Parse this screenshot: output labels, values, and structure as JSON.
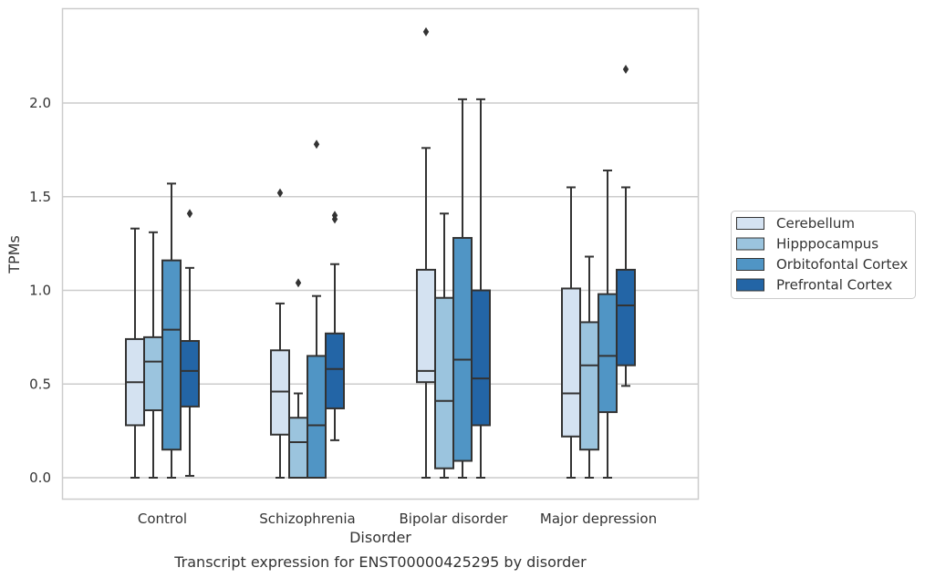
{
  "caption": "Transcript expression for ENST00000425295 by disorder",
  "chart_data": {
    "type": "boxplot",
    "title": "",
    "xlabel": "Disorder",
    "ylabel": "TPMs",
    "ylim": [
      -0.11,
      2.5
    ],
    "yticks": [
      "0.0",
      "0.5",
      "1.0",
      "1.5",
      "2.0"
    ],
    "grid": "horizontal",
    "legend_position": "right",
    "categories": [
      "Control",
      "Schizophrenia",
      "Bipolar disorder",
      "Major depression"
    ],
    "series": [
      {
        "name": "Cerebellum",
        "color": "#d4e2f1",
        "boxes": [
          {
            "whisker_low": 0.0,
            "q1": 0.28,
            "median": 0.51,
            "q3": 0.74,
            "whisker_high": 1.33,
            "outliers": []
          },
          {
            "whisker_low": 0.0,
            "q1": 0.23,
            "median": 0.46,
            "q3": 0.68,
            "whisker_high": 0.93,
            "outliers": [
              1.52
            ]
          },
          {
            "whisker_low": 0.0,
            "q1": 0.51,
            "median": 0.57,
            "q3": 1.11,
            "whisker_high": 1.76,
            "outliers": [
              2.38
            ]
          },
          {
            "whisker_low": 0.0,
            "q1": 0.22,
            "median": 0.45,
            "q3": 1.01,
            "whisker_high": 1.55,
            "outliers": []
          }
        ]
      },
      {
        "name": "Hipppocampus",
        "color": "#9bc4de",
        "boxes": [
          {
            "whisker_low": 0.0,
            "q1": 0.36,
            "median": 0.62,
            "q3": 0.75,
            "whisker_high": 1.31,
            "outliers": []
          },
          {
            "whisker_low": 0.0,
            "q1": 0.0,
            "median": 0.19,
            "q3": 0.32,
            "whisker_high": 0.45,
            "outliers": [
              1.04
            ]
          },
          {
            "whisker_low": 0.0,
            "q1": 0.05,
            "median": 0.41,
            "q3": 0.96,
            "whisker_high": 1.41,
            "outliers": []
          },
          {
            "whisker_low": 0.0,
            "q1": 0.15,
            "median": 0.6,
            "q3": 0.83,
            "whisker_high": 1.18,
            "outliers": []
          }
        ]
      },
      {
        "name": "Orbitofontal Cortex",
        "color": "#5095c5",
        "boxes": [
          {
            "whisker_low": 0.0,
            "q1": 0.15,
            "median": 0.79,
            "q3": 1.16,
            "whisker_high": 1.57,
            "outliers": []
          },
          {
            "whisker_low": 0.0,
            "q1": 0.0,
            "median": 0.28,
            "q3": 0.65,
            "whisker_high": 0.97,
            "outliers": [
              1.78
            ]
          },
          {
            "whisker_low": 0.0,
            "q1": 0.09,
            "median": 0.63,
            "q3": 1.28,
            "whisker_high": 2.02,
            "outliers": []
          },
          {
            "whisker_low": 0.0,
            "q1": 0.35,
            "median": 0.65,
            "q3": 0.98,
            "whisker_high": 1.64,
            "outliers": []
          }
        ]
      },
      {
        "name": "Prefrontal Cortex",
        "color": "#2365a6",
        "boxes": [
          {
            "whisker_low": 0.01,
            "q1": 0.38,
            "median": 0.57,
            "q3": 0.73,
            "whisker_high": 1.12,
            "outliers": [
              1.41
            ]
          },
          {
            "whisker_low": 0.2,
            "q1": 0.37,
            "median": 0.58,
            "q3": 0.77,
            "whisker_high": 1.14,
            "outliers": [
              1.38,
              1.4
            ]
          },
          {
            "whisker_low": 0.0,
            "q1": 0.28,
            "median": 0.53,
            "q3": 1.0,
            "whisker_high": 2.02,
            "outliers": []
          },
          {
            "whisker_low": 0.49,
            "q1": 0.6,
            "median": 0.92,
            "q3": 1.11,
            "whisker_high": 1.55,
            "outliers": [
              2.18
            ]
          }
        ]
      }
    ]
  }
}
